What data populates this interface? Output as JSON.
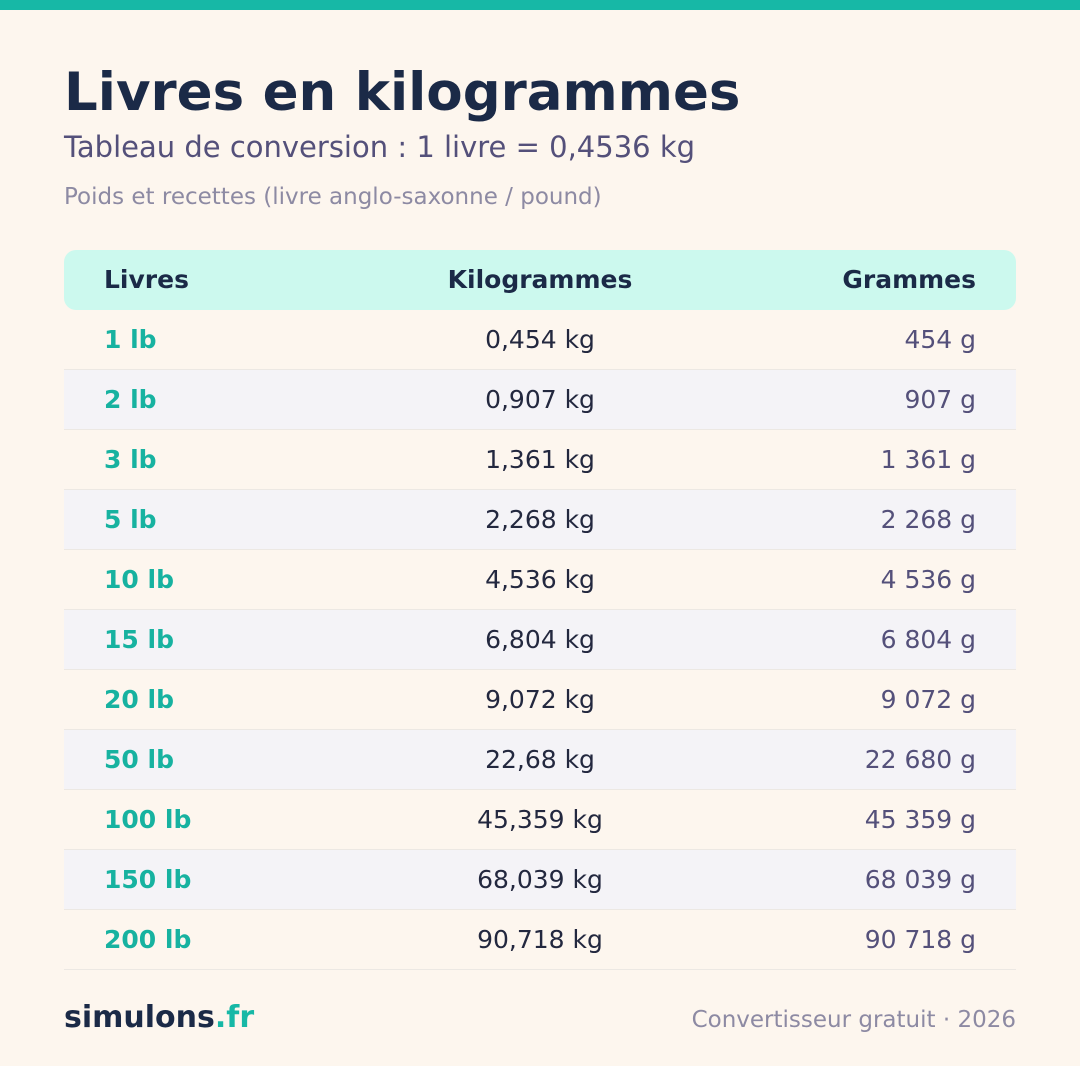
{
  "header": {
    "title": "Livres en kilogrammes",
    "subtitle": "Tableau de conversion : 1 livre = 0,4536 kg",
    "caption": "Poids et recettes (livre anglo-saxonne / pound)"
  },
  "table": {
    "columns": [
      "Livres",
      "Kilogrammes",
      "Grammes"
    ],
    "rows": [
      [
        "1 lb",
        "0,454 kg",
        "454 g"
      ],
      [
        "2 lb",
        "0,907 kg",
        "907 g"
      ],
      [
        "3 lb",
        "1,361 kg",
        "1 361 g"
      ],
      [
        "5 lb",
        "2,268 kg",
        "2 268 g"
      ],
      [
        "10 lb",
        "4,536 kg",
        "4 536 g"
      ],
      [
        "15 lb",
        "6,804 kg",
        "6 804 g"
      ],
      [
        "20 lb",
        "9,072 kg",
        "9 072 g"
      ],
      [
        "50 lb",
        "22,68 kg",
        "22 680 g"
      ],
      [
        "100 lb",
        "45,359 kg",
        "45 359 g"
      ],
      [
        "150 lb",
        "68,039 kg",
        "68 039 g"
      ],
      [
        "200 lb",
        "90,718 kg",
        "90 718 g"
      ]
    ]
  },
  "footer": {
    "brand_name": "simulons",
    "brand_tld": ".fr",
    "note": "Convertisseur gratuit · 2026"
  },
  "colors": {
    "accent": "#17b8a6",
    "background": "#fdf6ee",
    "header_row": "#ccf9ee",
    "title": "#1b2a47",
    "muted": "#8d8aa3"
  }
}
